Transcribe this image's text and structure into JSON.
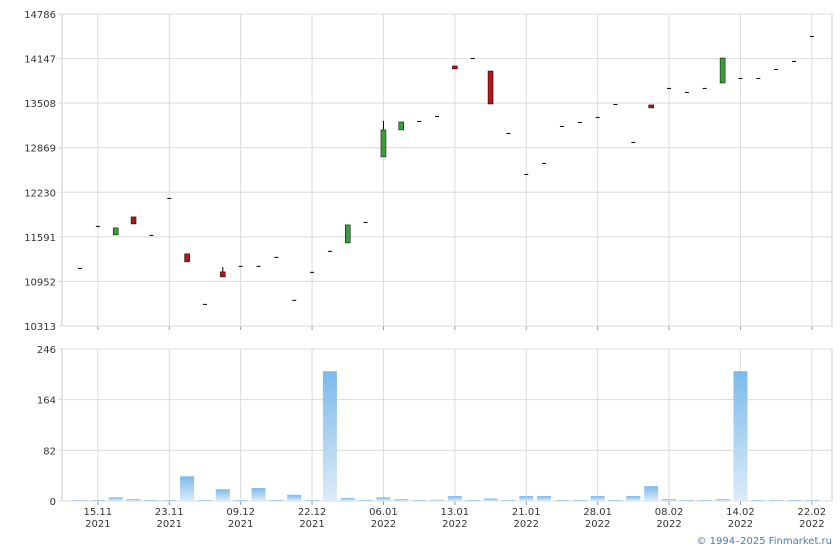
{
  "chart_data": [
    {
      "type": "candlestick",
      "open": [
        11146,
        11748,
        11619,
        11877,
        11619,
        12149,
        11347,
        10630,
        11089,
        11175,
        11175,
        11304,
        10688,
        11089,
        11390,
        11504,
        11805,
        12737,
        13124,
        13253,
        13324,
        14041,
        14155,
        13969,
        13081,
        12493,
        12651,
        13181,
        13238,
        13310,
        13496,
        12952,
        13482,
        13726,
        13668,
        13726,
        13797,
        13869,
        13869,
        13998,
        14113,
        14471
      ],
      "high": [
        11146,
        11748,
        11720,
        11877,
        11619,
        12149,
        11347,
        10630,
        11160,
        11175,
        11175,
        11304,
        10688,
        11089,
        11390,
        11762,
        11805,
        13253,
        13238,
        13253,
        13324,
        14041,
        14155,
        13969,
        13081,
        12493,
        12651,
        13181,
        13238,
        13310,
        13496,
        12952,
        13482,
        13726,
        13668,
        13726,
        14155,
        13869,
        13869,
        13998,
        14113,
        14471
      ],
      "low": [
        11146,
        11748,
        11619,
        11776,
        11619,
        12149,
        11232,
        10630,
        11017,
        11175,
        11175,
        11304,
        10688,
        11089,
        11390,
        11504,
        11805,
        12737,
        13124,
        13253,
        13324,
        13998,
        14155,
        13496,
        13081,
        12493,
        12651,
        13181,
        13238,
        13310,
        13496,
        12952,
        13439,
        13726,
        13668,
        13726,
        13797,
        13869,
        13869,
        13998,
        14113,
        14471
      ],
      "close": [
        11146,
        11748,
        11720,
        11776,
        11619,
        12149,
        11232,
        10630,
        11017,
        11175,
        11175,
        11304,
        10688,
        11089,
        11390,
        11762,
        11805,
        13124,
        13238,
        13253,
        13324,
        13998,
        14155,
        13496,
        13081,
        12493,
        12651,
        13181,
        13238,
        13310,
        13496,
        12952,
        13439,
        13726,
        13668,
        13726,
        14155,
        13869,
        13869,
        13998,
        14113,
        14471
      ],
      "up_color": "#3a9e3a",
      "down_color": "#b01818",
      "flat_color": "#000000",
      "ylim": [
        10313,
        14786
      ],
      "yticks": [
        10313,
        10952,
        11591,
        12230,
        12869,
        13508,
        14147,
        14786
      ],
      "grid": true
    },
    {
      "type": "bar",
      "categories": [
        null,
        "15.11 2021",
        null,
        null,
        null,
        "23.11 2021",
        null,
        null,
        null,
        "09.12 2021",
        null,
        null,
        null,
        "22.12 2021",
        null,
        null,
        null,
        "06.01 2022",
        null,
        null,
        null,
        "13.01 2022",
        null,
        null,
        null,
        "21.01 2022",
        null,
        null,
        null,
        "28.01 2022",
        null,
        null,
        null,
        "08.02 2022",
        null,
        null,
        null,
        "14.02 2022",
        null,
        null,
        null,
        "22.02 2022"
      ],
      "values": [
        1,
        1,
        6,
        3,
        1,
        1,
        40,
        1,
        19,
        1,
        21,
        1,
        10,
        1,
        210,
        5,
        1,
        6,
        3,
        1,
        2,
        8,
        1,
        4,
        1,
        8,
        8,
        1,
        1,
        8,
        1,
        8,
        24,
        3,
        1,
        1,
        3,
        210,
        1,
        1,
        1,
        1
      ],
      "color": "#7cb9ea",
      "ylim": [
        0,
        246
      ],
      "yticks": [
        0,
        82,
        164,
        246
      ],
      "grid": true
    }
  ],
  "footer": "© 1994–2025 Finmarket.ru"
}
